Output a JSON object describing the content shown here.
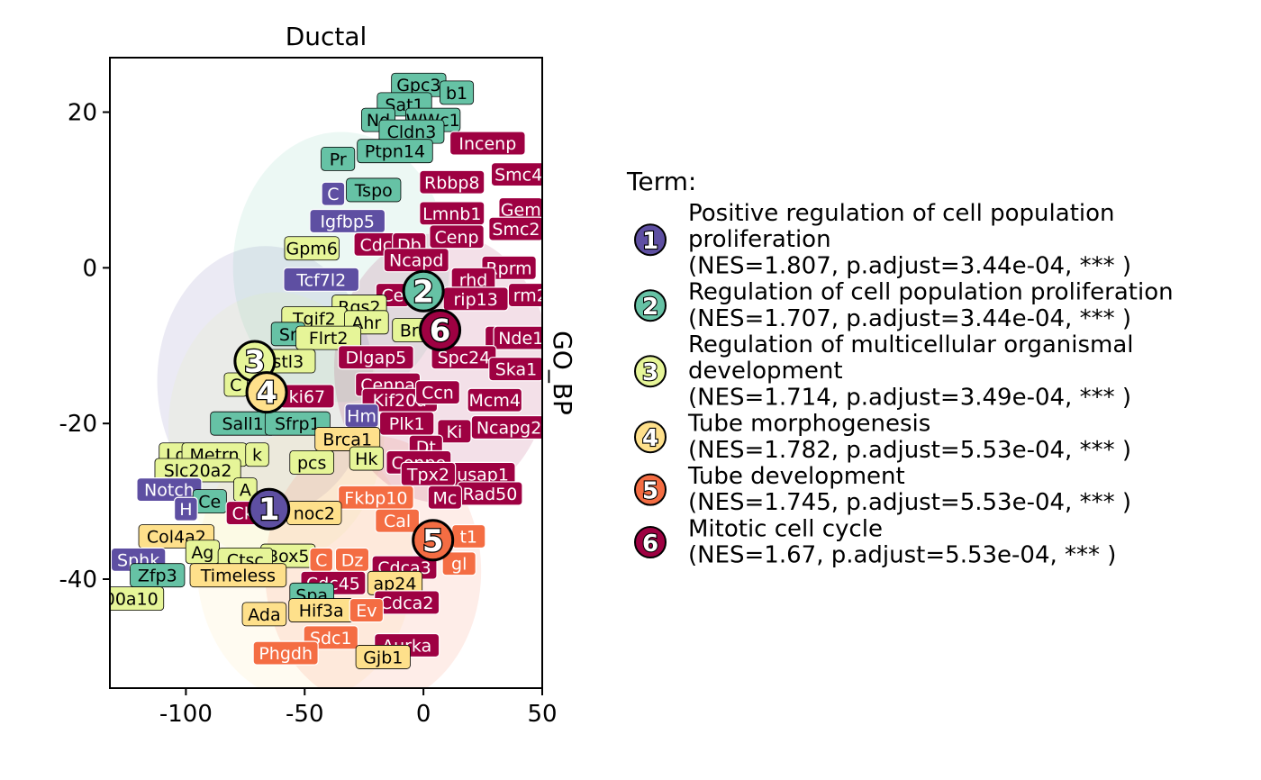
{
  "chart_data": {
    "type": "scatter",
    "title": "Ductal",
    "facet_label": "GO_BP",
    "xlim": [
      -132,
      50
    ],
    "ylim": [
      -54,
      27
    ],
    "x_ticks": [
      -100,
      -50,
      0,
      50
    ],
    "y_ticks": [
      20,
      0,
      -20,
      -40
    ],
    "x_tick_labels": [
      "-100",
      "-50",
      "0",
      "50"
    ],
    "y_tick_labels": [
      "20",
      "0",
      "-20",
      "-40"
    ],
    "legend_title": "Term:",
    "legend_position": "right",
    "terms": [
      {
        "id": "1",
        "name": "Positive regulation of cell population proliferation",
        "lines": [
          "Positive regulation of cell population",
          "proliferation",
          "(NES=1.807, p.adjust=3.44e-04, *** )"
        ],
        "color": "#5E4FA2",
        "x": -65,
        "y": -31
      },
      {
        "id": "2",
        "name": "Regulation of cell population proliferation",
        "lines": [
          "Regulation of cell population proliferation",
          "(NES=1.707, p.adjust=3.44e-04, *** )"
        ],
        "color": "#66C2A5",
        "x": 0,
        "y": -3
      },
      {
        "id": "3",
        "name": "Regulation of multicellular organismal development",
        "lines": [
          "Regulation of multicellular organismal",
          "development",
          "(NES=1.714, p.adjust=3.49e-04, *** )"
        ],
        "color": "#E6F598",
        "x": -71,
        "y": -12
      },
      {
        "id": "4",
        "name": "Tube morphogenesis",
        "lines": [
          "Tube morphogenesis",
          "(NES=1.782, p.adjust=5.53e-04, *** )"
        ],
        "color": "#FEE08B",
        "x": -66,
        "y": -16
      },
      {
        "id": "5",
        "name": "Tube development",
        "lines": [
          "Tube development",
          "(NES=1.745, p.adjust=5.53e-04, *** )"
        ],
        "color": "#F46D43",
        "x": 4,
        "y": -35
      },
      {
        "id": "6",
        "name": "Mitotic cell cycle",
        "lines": [
          "Mitotic cell cycle",
          "(NES=1.67, p.adjust=5.53e-04, *** )"
        ],
        "color": "#9E0142",
        "x": 7,
        "y": -8
      }
    ],
    "gene_labels": [
      {
        "text": "Gpc3",
        "x": -2,
        "y": 23.5,
        "term": "2"
      },
      {
        "text": "b1",
        "x": 14,
        "y": 22.5,
        "term": "2"
      },
      {
        "text": "Sat1",
        "x": -8,
        "y": 21,
        "term": "2"
      },
      {
        "text": "Nd",
        "x": -19,
        "y": 19,
        "term": "2"
      },
      {
        "text": "WWc1",
        "x": 4,
        "y": 19,
        "term": "2"
      },
      {
        "text": "Cldn3",
        "x": -5,
        "y": 17.5,
        "term": "2"
      },
      {
        "text": "Incenp",
        "x": 27,
        "y": 16,
        "term": "6"
      },
      {
        "text": "Ptpn14",
        "x": -12,
        "y": 15,
        "term": "2"
      },
      {
        "text": "Pr",
        "x": -36,
        "y": 14,
        "term": "2"
      },
      {
        "text": "Smc4",
        "x": 40,
        "y": 12,
        "term": "6"
      },
      {
        "text": "Rbbp8",
        "x": 12,
        "y": 11,
        "term": "6"
      },
      {
        "text": "Tspo",
        "x": -21,
        "y": 10,
        "term": "2"
      },
      {
        "text": "C",
        "x": -38,
        "y": 9.5,
        "term": "1"
      },
      {
        "text": "Lmnb1",
        "x": 12,
        "y": 7,
        "term": "6"
      },
      {
        "text": "Gem",
        "x": 41,
        "y": 7.5,
        "term": "6"
      },
      {
        "text": "Igfbp5",
        "x": -32,
        "y": 6,
        "term": "1"
      },
      {
        "text": "Smc2",
        "x": 39,
        "y": 5,
        "term": "6"
      },
      {
        "text": "Cenp",
        "x": 14,
        "y": 4,
        "term": "6"
      },
      {
        "text": "Gpm6",
        "x": -47,
        "y": 2.5,
        "term": "3"
      },
      {
        "text": "Cdc",
        "x": -20,
        "y": 3,
        "term": "6"
      },
      {
        "text": "Db",
        "x": -6,
        "y": 3,
        "term": "6"
      },
      {
        "text": "Ncapd",
        "x": -3,
        "y": 1,
        "term": "6"
      },
      {
        "text": "Rprm",
        "x": 36,
        "y": 0,
        "term": "6"
      },
      {
        "text": "Tcf7l2",
        "x": -43,
        "y": -1.5,
        "term": "1"
      },
      {
        "text": "rhd",
        "x": 21,
        "y": -1.5,
        "term": "6"
      },
      {
        "text": "Ce",
        "x": -13,
        "y": -3.5,
        "term": "6"
      },
      {
        "text": "rip13",
        "x": 22,
        "y": -4,
        "term": "6"
      },
      {
        "text": "rm2",
        "x": 45,
        "y": -3.5,
        "term": "6"
      },
      {
        "text": "Rgs2",
        "x": -27,
        "y": -5,
        "term": "3"
      },
      {
        "text": "Tgif2",
        "x": -46,
        "y": -6.5,
        "term": "3"
      },
      {
        "text": "Ahr",
        "x": -24,
        "y": -7,
        "term": "3"
      },
      {
        "text": "Sr",
        "x": -57,
        "y": -8.5,
        "term": "2"
      },
      {
        "text": "Flrt2",
        "x": -40,
        "y": -9,
        "term": "3"
      },
      {
        "text": "Br",
        "x": -6,
        "y": -8,
        "term": "3"
      },
      {
        "text": "Ki",
        "x": 33,
        "y": -9,
        "term": "6"
      },
      {
        "text": "Nde1",
        "x": 41,
        "y": -9,
        "term": "6"
      },
      {
        "text": "stl3",
        "x": -57,
        "y": -12,
        "term": "3"
      },
      {
        "text": "Dlgap5",
        "x": -20,
        "y": -11.5,
        "term": "6"
      },
      {
        "text": "Spc24",
        "x": 17,
        "y": -11.5,
        "term": "6"
      },
      {
        "text": "Ska1",
        "x": 39,
        "y": -13,
        "term": "6"
      },
      {
        "text": "C",
        "x": -79,
        "y": -15,
        "term": "3"
      },
      {
        "text": "Cenpa",
        "x": -15,
        "y": -15,
        "term": "6"
      },
      {
        "text": "ki67",
        "x": -49,
        "y": -16.5,
        "term": "6"
      },
      {
        "text": "Kif20a",
        "x": -10,
        "y": -17,
        "term": "6"
      },
      {
        "text": "Ccn",
        "x": 6,
        "y": -16,
        "term": "6"
      },
      {
        "text": "Mcm4",
        "x": 30,
        "y": -17,
        "term": "6"
      },
      {
        "text": "Hm",
        "x": -26,
        "y": -19,
        "term": "1"
      },
      {
        "text": "Sall1",
        "x": -76,
        "y": -20,
        "term": "2"
      },
      {
        "text": "Sfrp1",
        "x": -53,
        "y": -20,
        "term": "2"
      },
      {
        "text": "Plk1",
        "x": -7,
        "y": -20,
        "term": "6"
      },
      {
        "text": "Ki",
        "x": 13,
        "y": -21,
        "term": "6"
      },
      {
        "text": "Ncapg2",
        "x": 36,
        "y": -20.5,
        "term": "6"
      },
      {
        "text": "Brca1",
        "x": -32,
        "y": -22,
        "term": "4"
      },
      {
        "text": "Dt",
        "x": 1,
        "y": -23,
        "term": "6"
      },
      {
        "text": "Lga",
        "x": -102,
        "y": -24,
        "term": "3"
      },
      {
        "text": "Metrn",
        "x": -88,
        "y": -24,
        "term": "3"
      },
      {
        "text": "k",
        "x": -70,
        "y": -24,
        "term": "3"
      },
      {
        "text": "Hk",
        "x": -24,
        "y": -24.5,
        "term": "3"
      },
      {
        "text": "pcs",
        "x": -47,
        "y": -25,
        "term": "3"
      },
      {
        "text": "Cenpe",
        "x": -2,
        "y": -25,
        "term": "6"
      },
      {
        "text": "Slc20a2",
        "x": -95,
        "y": -26,
        "term": "3"
      },
      {
        "text": "usap1",
        "x": 25,
        "y": -26.5,
        "term": "6"
      },
      {
        "text": "Tpx2",
        "x": 2,
        "y": -26.5,
        "term": "6"
      },
      {
        "text": "Notch",
        "x": -107,
        "y": -28.5,
        "term": "1"
      },
      {
        "text": "A",
        "x": -75,
        "y": -28.5,
        "term": "3"
      },
      {
        "text": "Rad50",
        "x": 28,
        "y": -29,
        "term": "6"
      },
      {
        "text": "Fkbp10",
        "x": -20,
        "y": -29.5,
        "term": "5"
      },
      {
        "text": "Mc",
        "x": 9,
        "y": -29.5,
        "term": "6"
      },
      {
        "text": "Ce",
        "x": -90,
        "y": -30,
        "term": "2"
      },
      {
        "text": "H",
        "x": -100,
        "y": -31,
        "term": "1"
      },
      {
        "text": "Ck",
        "x": -76,
        "y": -31.5,
        "term": "6"
      },
      {
        "text": "noc2",
        "x": -46,
        "y": -31.5,
        "term": "4"
      },
      {
        "text": "Cal",
        "x": -11,
        "y": -32.5,
        "term": "5"
      },
      {
        "text": "Col4a2",
        "x": -104,
        "y": -34.5,
        "term": "4"
      },
      {
        "text": "t1",
        "x": 19,
        "y": -34.5,
        "term": "5"
      },
      {
        "text": "Ag",
        "x": -93,
        "y": -36.5,
        "term": "3"
      },
      {
        "text": "Box5",
        "x": -57,
        "y": -37,
        "term": "3"
      },
      {
        "text": "C",
        "x": -43,
        "y": -37.5,
        "term": "5"
      },
      {
        "text": "Dz",
        "x": -30,
        "y": -37.5,
        "term": "5"
      },
      {
        "text": "Sphk",
        "x": -120,
        "y": -37.5,
        "term": "1"
      },
      {
        "text": "Ctsc",
        "x": -75,
        "y": -37.5,
        "term": "3"
      },
      {
        "text": "Cdca3",
        "x": -8,
        "y": -38.5,
        "term": "6"
      },
      {
        "text": "gl",
        "x": 15,
        "y": -38,
        "term": "5"
      },
      {
        "text": "Zfp3",
        "x": -112,
        "y": -39.5,
        "term": "2"
      },
      {
        "text": "Timeless",
        "x": -78,
        "y": -39.5,
        "term": "4"
      },
      {
        "text": "Cdc45",
        "x": -38,
        "y": -40.5,
        "term": "6"
      },
      {
        "text": "ap24",
        "x": -12,
        "y": -40.5,
        "term": "4"
      },
      {
        "text": "Cdca2",
        "x": -7,
        "y": -43,
        "term": "6"
      },
      {
        "text": "Spa",
        "x": -47,
        "y": -42,
        "term": "2"
      },
      {
        "text": "00a10",
        "x": -123,
        "y": -42.5,
        "term": "3"
      },
      {
        "text": "Hif3a",
        "x": -43,
        "y": -44,
        "term": "4"
      },
      {
        "text": "Ev",
        "x": -24,
        "y": -44,
        "term": "5"
      },
      {
        "text": "Ada",
        "x": -67,
        "y": -44.5,
        "term": "4"
      },
      {
        "text": "Sdc1",
        "x": -39,
        "y": -47.5,
        "term": "5"
      },
      {
        "text": "Aurka",
        "x": -7,
        "y": -48.5,
        "term": "6"
      },
      {
        "text": "Phgdh",
        "x": -58,
        "y": -49.5,
        "term": "5"
      },
      {
        "text": "Gjb1",
        "x": -17,
        "y": -50,
        "term": "4"
      }
    ]
  }
}
